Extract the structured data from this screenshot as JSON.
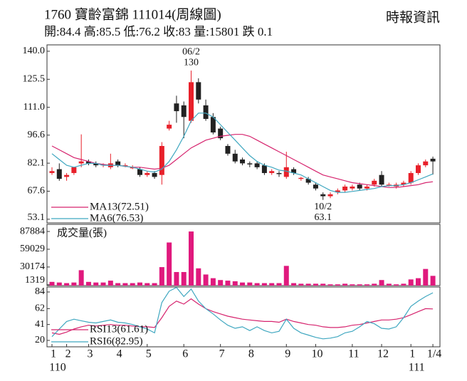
{
  "header": {
    "title": "1760  寶齡富錦 111014(周線圖)",
    "source": "時報資訊",
    "summary": "開:84.4 高:85.5 低:76.2 收:83 量:15801 跌 0.1"
  },
  "chart_data": [
    {
      "type": "candlestick",
      "up_color": "#e8202a",
      "down_color": "#222222",
      "open": [
        77,
        79,
        75,
        77,
        82,
        83,
        82,
        81,
        80,
        83,
        81,
        80,
        79,
        76,
        77,
        76,
        100,
        113,
        112,
        104,
        124,
        112,
        106,
        100,
        91,
        87,
        84,
        82,
        82,
        81,
        77,
        77,
        75,
        79,
        74,
        74,
        71,
        66,
        65,
        67,
        68,
        69,
        71,
        69,
        71,
        76,
        71,
        70,
        71,
        72,
        77,
        81,
        84.4
      ],
      "high": [
        80,
        82,
        77,
        80,
        97,
        84,
        83,
        82,
        87,
        84,
        82,
        81,
        80,
        78,
        78,
        93,
        104,
        117,
        114,
        130,
        126,
        115,
        108,
        101,
        92,
        89,
        85,
        83,
        83,
        82,
        79,
        78,
        88,
        80,
        75,
        75,
        72,
        67,
        67,
        69,
        71,
        71,
        72,
        71,
        74,
        78,
        72,
        72,
        73,
        78,
        82,
        84,
        85.5
      ],
      "low": [
        76,
        73,
        73,
        76,
        80,
        81,
        80,
        80,
        79,
        80,
        80,
        79,
        75,
        75,
        74,
        71,
        99,
        103,
        95,
        103,
        113,
        104,
        97,
        94,
        86,
        82,
        81,
        80,
        79,
        76,
        76,
        75,
        74,
        76,
        73,
        71,
        68,
        63.1,
        64,
        66,
        67,
        68,
        68,
        68,
        70,
        70,
        70,
        69,
        70,
        71,
        76,
        80,
        76.2
      ],
      "close": [
        78,
        74,
        76,
        80,
        83,
        82,
        81,
        81.5,
        82,
        81,
        81,
        80,
        76,
        77,
        75,
        91,
        102,
        109,
        106,
        124,
        115,
        105,
        98,
        95,
        87,
        83,
        82,
        81.5,
        80,
        77,
        78,
        76.5,
        80,
        77,
        74.5,
        72,
        69,
        65,
        66,
        68,
        70,
        70,
        69,
        70,
        73,
        71,
        71,
        71,
        72,
        77,
        81,
        83,
        83
      ],
      "series": [
        {
          "name": "MA13(72.51)",
          "color": "#d6246e",
          "values": [
            91,
            89,
            87,
            85,
            84,
            83,
            82,
            81.5,
            81,
            81,
            80.5,
            80,
            80,
            79.5,
            79,
            79.5,
            81,
            84,
            87,
            90,
            92,
            94,
            95,
            96,
            96.5,
            97,
            97,
            96,
            94,
            92,
            90,
            88,
            86,
            84,
            82,
            80,
            78,
            76,
            75,
            74,
            73,
            72,
            71.5,
            71,
            70.5,
            70,
            69.5,
            69.5,
            70,
            70.5,
            71,
            72,
            72.51
          ]
        },
        {
          "name": "MA6(76.53)",
          "color": "#3fa7c0",
          "values": [
            87,
            84,
            81,
            80,
            81,
            82,
            82,
            81,
            81,
            81,
            80.5,
            80,
            79,
            78,
            77.5,
            79,
            83,
            89,
            96,
            104,
            108,
            108,
            106,
            102,
            98,
            94,
            90,
            86,
            83,
            81,
            80,
            78.5,
            78,
            77,
            76,
            74,
            72,
            70,
            68,
            67,
            67,
            67.5,
            68,
            68.5,
            69,
            70,
            70.5,
            70.5,
            71,
            72,
            73.5,
            75,
            76.53
          ]
        }
      ],
      "ylim": [
        51.2,
        143.3
      ],
      "yticks": [
        {
          "value": 140,
          "label": "140.0"
        },
        125.5,
        {
          "value": 111,
          "label": "111.0"
        },
        96.6,
        82.1,
        67.6,
        53.1
      ],
      "annotations": [
        {
          "date": "06/2",
          "value": 130,
          "at": "high"
        },
        {
          "date": "10/2",
          "value": 63.1,
          "at": "low"
        }
      ]
    },
    {
      "type": "bar",
      "label": "成交量(張)",
      "color": "#e0197d",
      "values": [
        6000,
        5000,
        4000,
        5000,
        25000,
        6000,
        5000,
        5000,
        8000,
        4000,
        4000,
        4000,
        5000,
        4000,
        4000,
        30000,
        70000,
        22000,
        22000,
        87884,
        28000,
        18000,
        12000,
        9000,
        8000,
        7000,
        5000,
        5000,
        4000,
        4000,
        4000,
        4000,
        32000,
        4000,
        3000,
        3000,
        3000,
        3000,
        2000,
        2000,
        3000,
        2000,
        2000,
        2000,
        3000,
        9000,
        3000,
        2000,
        3000,
        10000,
        12000,
        27000,
        15801
      ],
      "ylim": [
        0,
        99500
      ],
      "yticks": [
        87884,
        59029,
        30174,
        1319
      ]
    },
    {
      "type": "line",
      "categories": [
        "1",
        null,
        "2",
        null,
        null,
        "3",
        null,
        null,
        null,
        "4",
        null,
        null,
        null,
        "5",
        null,
        null,
        null,
        null,
        "6",
        null,
        null,
        null,
        null,
        "7",
        null,
        null,
        null,
        "8",
        null,
        null,
        null,
        null,
        "9",
        null,
        null,
        null,
        "10",
        null,
        null,
        null,
        null,
        "11",
        null,
        null,
        null,
        "12",
        null,
        null,
        null,
        "1",
        null,
        null,
        "1/4"
      ],
      "years": [
        "110",
        null,
        null,
        null,
        null,
        null,
        null,
        null,
        null,
        null,
        null,
        null,
        null,
        null,
        null,
        null,
        null,
        null,
        null,
        null,
        null,
        null,
        null,
        null,
        null,
        null,
        null,
        null,
        null,
        null,
        null,
        null,
        null,
        null,
        null,
        null,
        null,
        null,
        null,
        null,
        null,
        null,
        null,
        null,
        null,
        null,
        null,
        null,
        null,
        "111",
        null,
        null,
        null
      ],
      "series": [
        {
          "name": "RSI13(61.61)",
          "color": "#d6246e",
          "values": [
            30,
            28,
            31,
            35,
            38,
            40,
            39,
            40,
            41,
            40,
            40,
            39,
            38,
            38,
            37,
            50,
            65,
            72,
            68,
            75,
            68,
            62,
            58,
            55,
            52,
            50,
            48,
            47,
            46,
            45,
            45,
            44,
            48,
            45,
            43,
            41,
            40,
            38,
            37,
            37,
            38,
            40,
            41,
            43,
            45,
            47,
            47,
            48,
            50,
            54,
            58,
            62,
            61.61
          ]
        },
        {
          "name": "RSI6(82.95)",
          "color": "#3fa7c0",
          "values": [
            25,
            35,
            45,
            48,
            46,
            44,
            43,
            45,
            47,
            44,
            43,
            41,
            38,
            35,
            30,
            70,
            85,
            90,
            78,
            88,
            72,
            62,
            55,
            47,
            40,
            36,
            38,
            33,
            38,
            33,
            30,
            32,
            48,
            36,
            30,
            27,
            24,
            22,
            23,
            25,
            30,
            32,
            38,
            45,
            42,
            36,
            35,
            38,
            50,
            65,
            72,
            78,
            82.95
          ]
        }
      ],
      "ylim": [
        11.5,
        90.6
      ],
      "yticks": [
        84,
        62,
        41,
        20
      ]
    }
  ]
}
